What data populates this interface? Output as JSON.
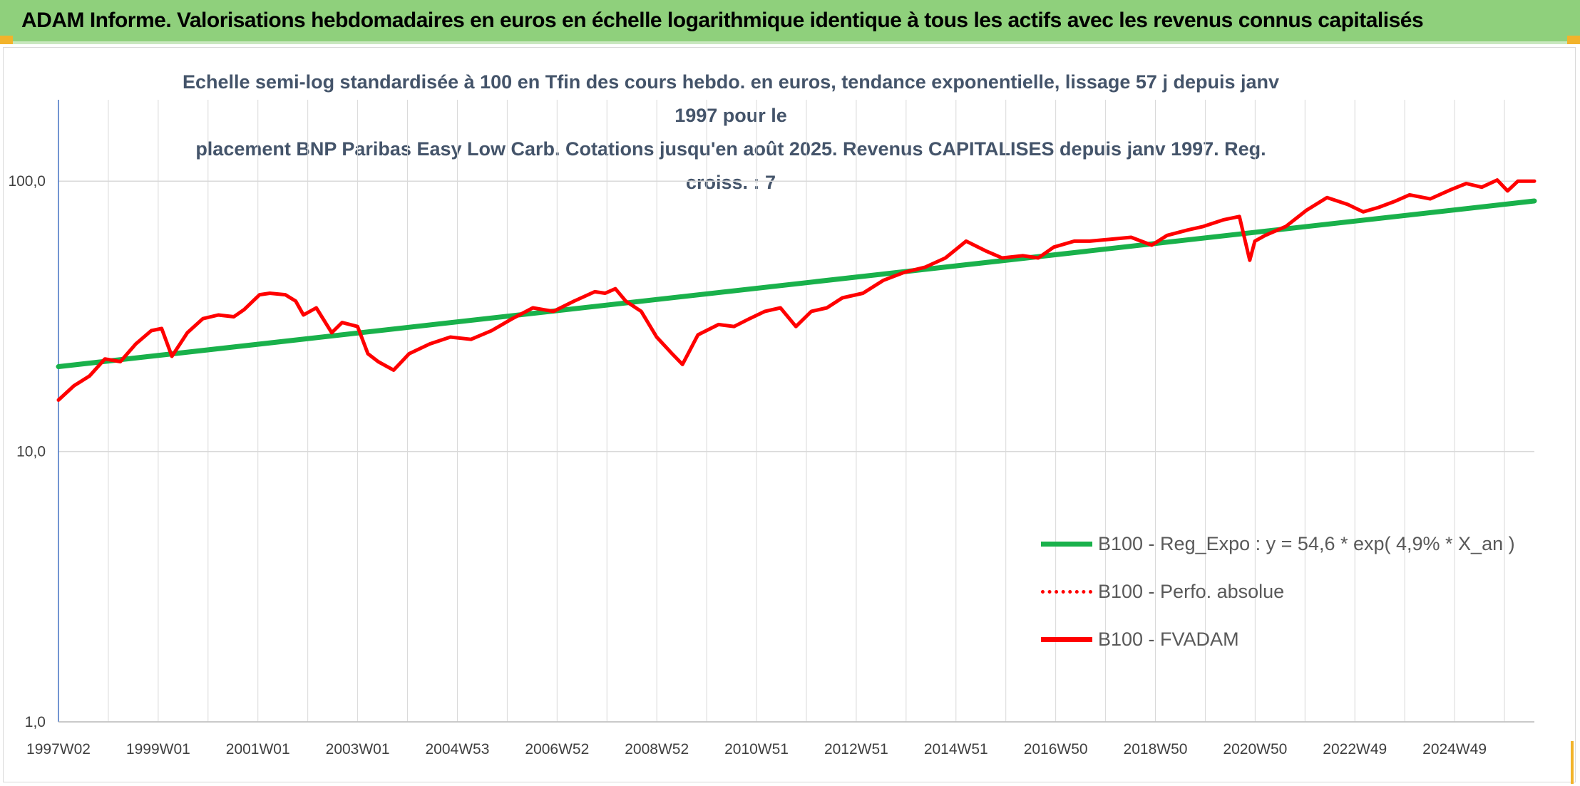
{
  "header": {
    "title": "ADAM Informe. Valorisations hebdomadaires en euros en échelle logarithmique identique à tous les actifs avec les revenus connus capitalisés"
  },
  "colors": {
    "header_bg": "#8fd07c",
    "trend": "#19b14b",
    "series": "#ff0000",
    "grid": "#d9d9d9",
    "title_text": "#44546a"
  },
  "chart_data": {
    "type": "line",
    "title_line1": "Echelle semi-log standardisée à 100 en Tfin des cours hebdo. en euros, tendance exponentielle, lissage 57 j depuis janv 1997 pour le",
    "title_line2": "placement BNP Paribas Easy Low Carb. Cotations jusqu'en août 2025. Revenus CAPITALISES depuis janv 1997. Reg. croiss. : 7",
    "y_scale": "log",
    "ylim": [
      1,
      200
    ],
    "y_ticks": [
      "1,0",
      "10,0",
      "100,0"
    ],
    "y_tick_values": [
      1,
      10,
      100
    ],
    "x_tick_labels": [
      "1997W02",
      "1999W01",
      "2001W01",
      "2003W01",
      "2004W53",
      "2006W52",
      "2008W52",
      "2010W51",
      "2012W51",
      "2014W51",
      "2016W50",
      "2018W50",
      "2020W50",
      "2022W49",
      "2024W49"
    ],
    "x_range_years": [
      1997.0,
      2025.62
    ],
    "grid": true,
    "legend_position": "bottom-right",
    "series": [
      {
        "name": "B100 - Reg_Expo : y = 54,6 * exp( 4,9% *  X_an )",
        "style": "solid-thick-green",
        "x": [
          1997.0,
          2025.62
        ],
        "y": [
          20.6,
          84.5
        ]
      },
      {
        "name": "B100 - Perfo. absolue",
        "style": "dotted-red",
        "x": [],
        "y": []
      },
      {
        "name": "B100 - FVADAM",
        "style": "solid-thick-red",
        "x": [
          1997.0,
          1997.3,
          1997.6,
          1997.9,
          1998.2,
          1998.5,
          1998.8,
          1999.0,
          1999.2,
          1999.5,
          1999.8,
          2000.1,
          2000.4,
          2000.6,
          2000.9,
          2001.1,
          2001.4,
          2001.6,
          2001.75,
          2002.0,
          2002.3,
          2002.5,
          2002.8,
          2003.0,
          2003.2,
          2003.5,
          2003.8,
          2004.2,
          2004.6,
          2005.0,
          2005.4,
          2005.8,
          2006.2,
          2006.6,
          2007.0,
          2007.4,
          2007.6,
          2007.8,
          2008.0,
          2008.3,
          2008.6,
          2008.9,
          2009.1,
          2009.4,
          2009.8,
          2010.1,
          2010.4,
          2010.7,
          2011.0,
          2011.3,
          2011.6,
          2011.9,
          2012.2,
          2012.6,
          2013.0,
          2013.4,
          2013.8,
          2014.2,
          2014.6,
          2015.0,
          2015.3,
          2015.7,
          2016.0,
          2016.3,
          2016.7,
          2017.0,
          2017.4,
          2017.8,
          2018.2,
          2018.5,
          2018.9,
          2019.2,
          2019.6,
          2019.9,
          2020.1,
          2020.2,
          2020.4,
          2020.8,
          2021.2,
          2021.6,
          2022.0,
          2022.3,
          2022.6,
          2022.9,
          2023.2,
          2023.6,
          2024.0,
          2024.3,
          2024.6,
          2024.9,
          2025.1,
          2025.3,
          2025.62
        ],
        "y": [
          15.5,
          17.5,
          19.0,
          22.0,
          21.5,
          25.0,
          28.0,
          28.5,
          22.5,
          27.5,
          31.0,
          32.0,
          31.5,
          33.5,
          38.0,
          38.5,
          38.0,
          36.0,
          32.0,
          34.0,
          27.5,
          30.0,
          29.0,
          23.0,
          21.5,
          20.0,
          23.0,
          25.0,
          26.5,
          26.0,
          28.0,
          31.0,
          34.0,
          33.0,
          36.0,
          39.0,
          38.5,
          40.0,
          36.0,
          33.0,
          26.5,
          23.0,
          21.0,
          27.0,
          29.5,
          29.0,
          31.0,
          33.0,
          34.0,
          29.0,
          33.0,
          34.0,
          37.0,
          38.5,
          43.0,
          46.0,
          48.0,
          52.0,
          60.0,
          55.0,
          52.0,
          53.0,
          52.0,
          57.0,
          60.0,
          60.0,
          61.0,
          62.0,
          58.0,
          63.0,
          66.0,
          68.0,
          72.0,
          74.0,
          51.0,
          60.0,
          63.0,
          68.0,
          78.0,
          87.0,
          82.0,
          77.0,
          80.0,
          84.0,
          89.0,
          86.0,
          93.0,
          98.0,
          95.0,
          101.0,
          92.0,
          100.0,
          100.0
        ]
      }
    ]
  }
}
